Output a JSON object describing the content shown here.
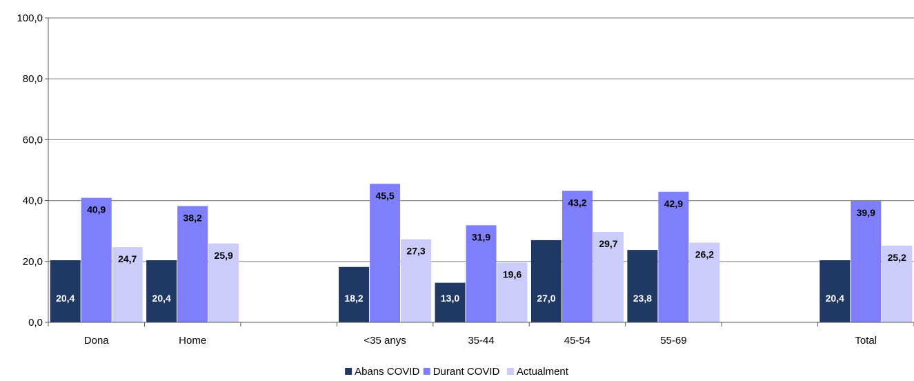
{
  "chart_data": {
    "type": "bar",
    "categories": [
      "Dona",
      "Home",
      "",
      "<35 anys",
      "35-44",
      "45-54",
      "55-69",
      "",
      "Total"
    ],
    "series": [
      {
        "name": "Abans COVID",
        "color": "#1f3864",
        "label_color": "#ffffff",
        "values": [
          20.4,
          20.4,
          null,
          18.2,
          13.0,
          27.0,
          23.8,
          null,
          20.4
        ]
      },
      {
        "name": "Durant COVID",
        "color": "#7f7ffc",
        "label_color": "#000000",
        "values": [
          40.9,
          38.2,
          null,
          45.5,
          31.9,
          43.2,
          42.9,
          null,
          39.9
        ]
      },
      {
        "name": "Actualment",
        "color": "#ccccfa",
        "label_color": "#000000",
        "values": [
          24.7,
          25.9,
          null,
          27.3,
          19.6,
          29.7,
          26.2,
          null,
          25.2
        ]
      }
    ],
    "value_labels": [
      [
        "20,4",
        "20,4",
        "",
        "18,2",
        "13,0",
        "27,0",
        "23,8",
        "",
        "20,4"
      ],
      [
        "40,9",
        "38,2",
        "",
        "45,5",
        "31,9",
        "43,2",
        "42,9",
        "",
        "39,9"
      ],
      [
        "24,7",
        "25,9",
        "",
        "27,3",
        "19,6",
        "29,7",
        "26,2",
        "",
        "25,2"
      ]
    ],
    "ylim": [
      0,
      100
    ],
    "yticks": [
      0,
      20,
      40,
      60,
      80,
      100
    ],
    "ytick_labels": [
      "0,0",
      "20,0",
      "40,0",
      "60,0",
      "80,0",
      "100,0"
    ],
    "grid": true,
    "legend": "bottom-center",
    "title": "",
    "xlabel": "",
    "ylabel": ""
  }
}
